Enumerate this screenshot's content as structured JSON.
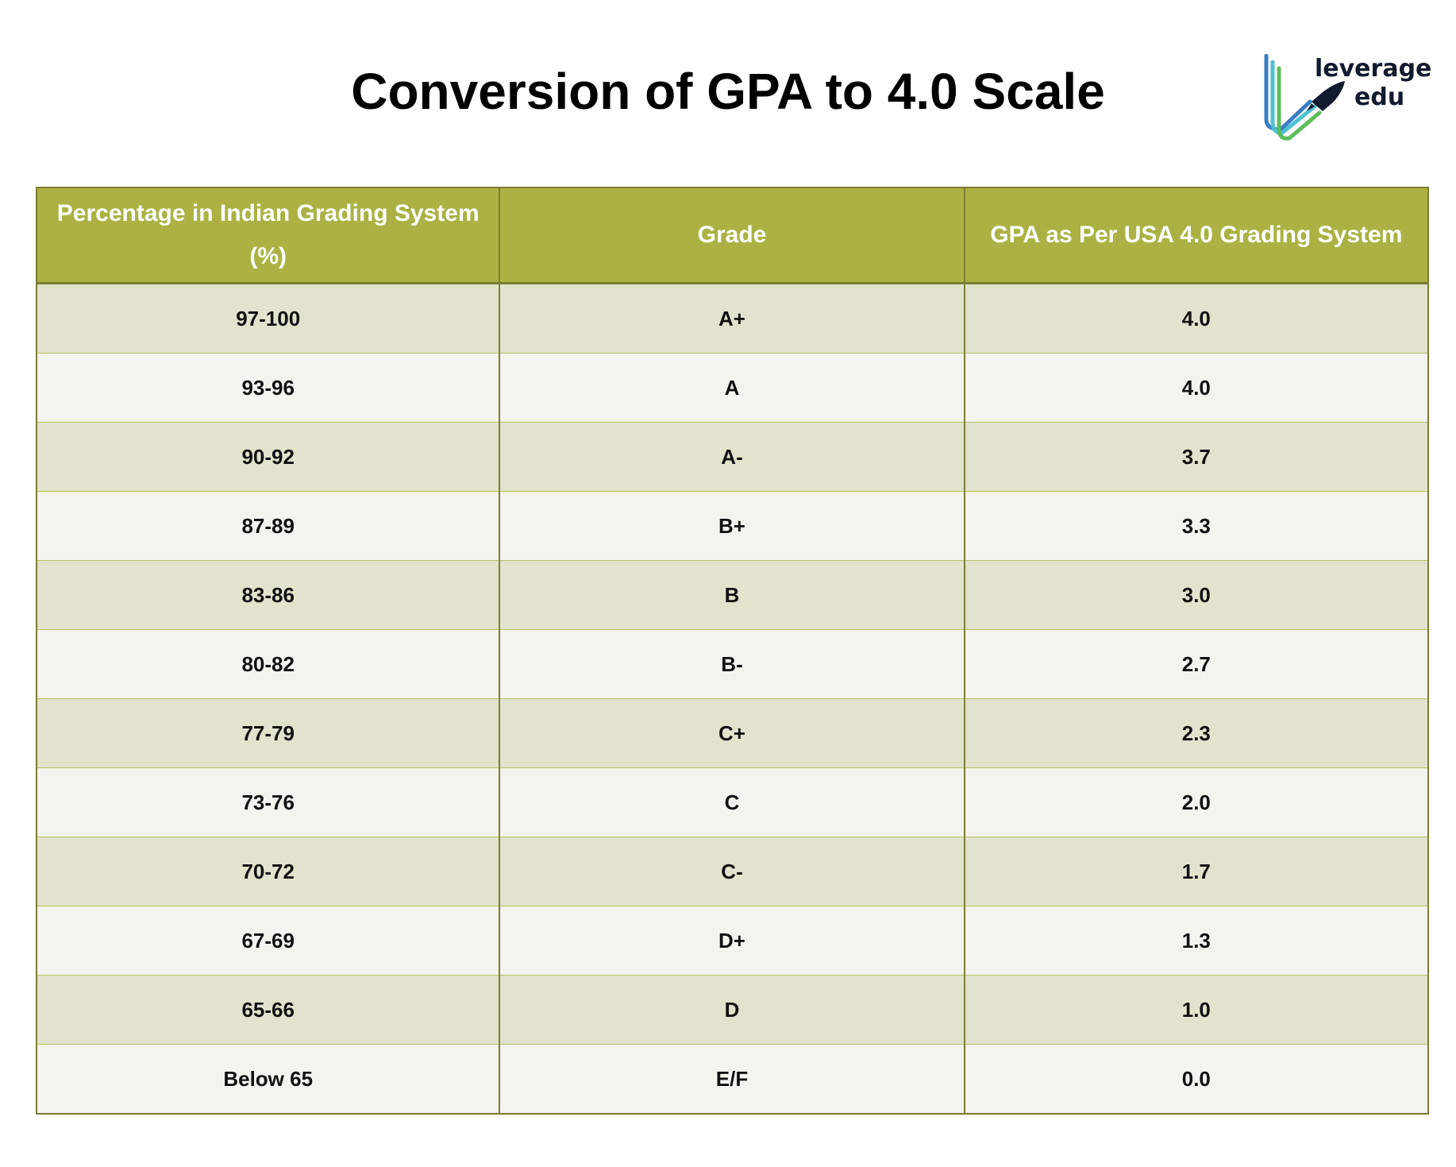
{
  "title": "Conversion of GPA to 4.0 Scale",
  "logo": {
    "text_line1": "leverage",
    "text_line2": "edu",
    "icon": "rocket-icon",
    "colors": [
      "#3a7dc4",
      "#4fc0d4",
      "#5bbd5a"
    ],
    "text_color": "#111a2e"
  },
  "colors": {
    "header_bg": "#abb243",
    "row_odd": "#e1e3cd",
    "row_even": "#f3f4ee",
    "border": "#7c7d33"
  },
  "table": {
    "headers": [
      "Percentage in Indian Grading System (%)",
      "Grade",
      "GPA as Per USA 4.0 Grading System"
    ],
    "rows": [
      [
        "97-100",
        "A+",
        "4.0"
      ],
      [
        "93-96",
        "A",
        "4.0"
      ],
      [
        "90-92",
        "A-",
        "3.7"
      ],
      [
        "87-89",
        "B+",
        "3.3"
      ],
      [
        "83-86",
        "B",
        "3.0"
      ],
      [
        "80-82",
        "B-",
        "2.7"
      ],
      [
        "77-79",
        "C+",
        "2.3"
      ],
      [
        "73-76",
        "C",
        "2.0"
      ],
      [
        "70-72",
        "C-",
        "1.7"
      ],
      [
        "67-69",
        "D+",
        "1.3"
      ],
      [
        "65-66",
        "D",
        "1.0"
      ],
      [
        "Below 65",
        "E/F",
        "0.0"
      ]
    ]
  }
}
